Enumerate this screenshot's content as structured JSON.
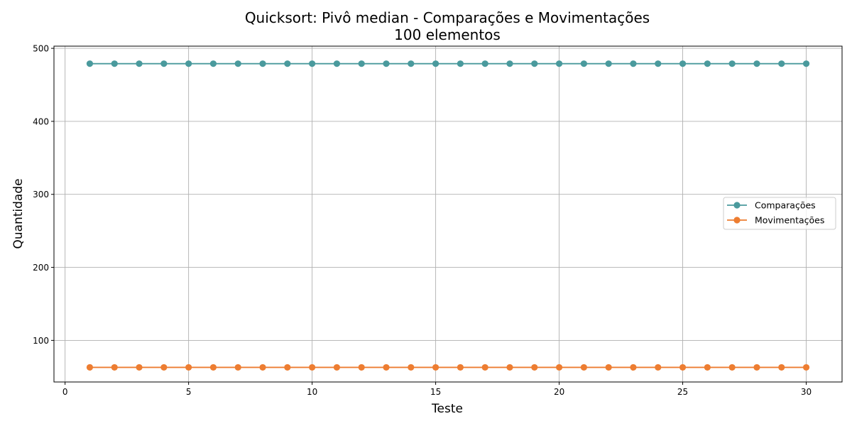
{
  "chart_data": {
    "type": "line",
    "title": "Quicksort: Pivô median - Comparações e Movimentações",
    "subtitle": "100 elementos",
    "xlabel": "Teste",
    "ylabel": "Quantidade",
    "xlim": [
      -0.45,
      31.45
    ],
    "ylim": [
      43,
      503
    ],
    "x_ticks": [
      0,
      5,
      10,
      15,
      20,
      25,
      30
    ],
    "y_ticks": [
      100,
      200,
      300,
      400,
      500
    ],
    "grid": true,
    "legend_position": "center-right",
    "x": [
      1,
      2,
      3,
      4,
      5,
      6,
      7,
      8,
      9,
      10,
      11,
      12,
      13,
      14,
      15,
      16,
      17,
      18,
      19,
      20,
      21,
      22,
      23,
      24,
      25,
      26,
      27,
      28,
      29,
      30
    ],
    "series": [
      {
        "name": "Comparações",
        "color": "#4a9a9d",
        "values": [
          479,
          479,
          479,
          479,
          479,
          479,
          479,
          479,
          479,
          479,
          479,
          479,
          479,
          479,
          479,
          479,
          479,
          479,
          479,
          479,
          479,
          479,
          479,
          479,
          479,
          479,
          479,
          479,
          479,
          479
        ]
      },
      {
        "name": "Movimentações",
        "color": "#ed7d31",
        "values": [
          63,
          63,
          63,
          63,
          63,
          63,
          63,
          63,
          63,
          63,
          63,
          63,
          63,
          63,
          63,
          63,
          63,
          63,
          63,
          63,
          63,
          63,
          63,
          63,
          63,
          63,
          63,
          63,
          63,
          63
        ]
      }
    ]
  }
}
